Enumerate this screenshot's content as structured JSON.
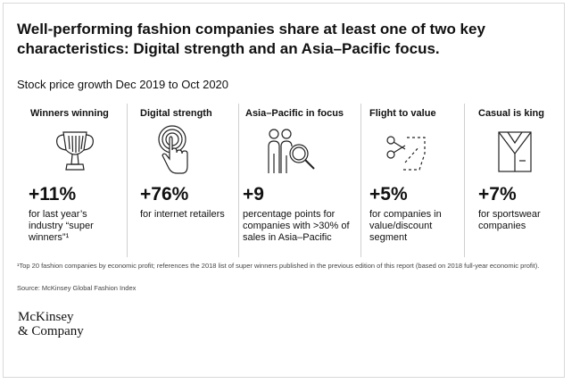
{
  "chart_data": {
    "type": "table",
    "title": "Well-performing fashion companies share at least one of two key characteristics: Digital strength and an Asia–Pacific focus.",
    "subtitle": "Stock price growth Dec 2019 to Oct 2020",
    "panels": [
      {
        "label": "Winners winning",
        "icon": "trophy-icon",
        "value": "+11%",
        "numeric_value": 11,
        "unit": "%",
        "description": "for last year’s industry “super winners”¹"
      },
      {
        "label": "Digital strength",
        "icon": "touch-hand-icon",
        "value": "+76%",
        "numeric_value": 76,
        "unit": "%",
        "description": "for internet retailers"
      },
      {
        "label": "Asia–Pacific in focus",
        "icon": "people-magnifier-icon",
        "value": "+9",
        "numeric_value": 9,
        "unit": "percentage points",
        "description": "percentage points for companies with >30% of sales in Asia–Pacific"
      },
      {
        "label": "Flight to value",
        "icon": "scissors-coupon-icon",
        "value": "+5%",
        "numeric_value": 5,
        "unit": "%",
        "description": "for companies in value/discount segment"
      },
      {
        "label": "Casual is king",
        "icon": "shirt-icon",
        "value": "+7%",
        "numeric_value": 7,
        "unit": "%",
        "description": "for sportswear companies"
      }
    ]
  },
  "footnote": "¹Top 20 fashion companies by economic profit; references the 2018 list of super winners published in the previous edition of this report (based on 2018 full-year economic profit).",
  "source": "Source: McKinsey Global Fashion Index",
  "logo": {
    "line1": "McKinsey",
    "line2": "& Company"
  }
}
